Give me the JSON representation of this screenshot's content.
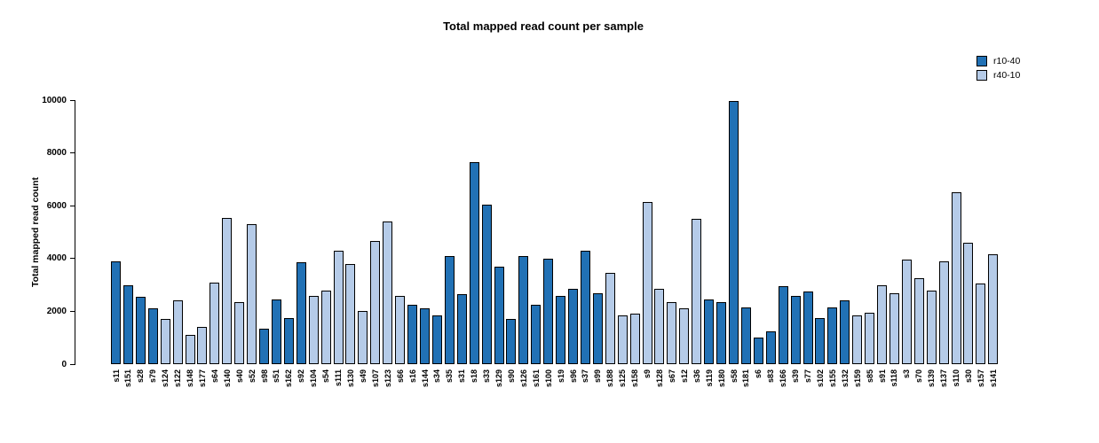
{
  "chart_data": {
    "type": "bar",
    "title": "Total mapped read count per sample",
    "xlabel": "",
    "ylabel": "Total mapped read count",
    "ylim": [
      0,
      10000
    ],
    "yticks": [
      0,
      2000,
      4000,
      6000,
      8000,
      10000
    ],
    "grid": false,
    "legend_position": "top-right",
    "series": [
      {
        "name": "r10-40",
        "color": "#2171b5"
      },
      {
        "name": "r40-10",
        "color": "#b5cbe8"
      }
    ],
    "bars": [
      {
        "sample": "s11",
        "value": 3900,
        "series": "r10-40"
      },
      {
        "sample": "s151",
        "value": 3000,
        "series": "r10-40"
      },
      {
        "sample": "s28",
        "value": 2550,
        "series": "r10-40"
      },
      {
        "sample": "s79",
        "value": 2100,
        "series": "r10-40"
      },
      {
        "sample": "s124",
        "value": 1700,
        "series": "r40-10"
      },
      {
        "sample": "s122",
        "value": 2400,
        "series": "r40-10"
      },
      {
        "sample": "s148",
        "value": 1100,
        "series": "r40-10"
      },
      {
        "sample": "s177",
        "value": 1400,
        "series": "r40-10"
      },
      {
        "sample": "s64",
        "value": 3100,
        "series": "r40-10"
      },
      {
        "sample": "s140",
        "value": 5550,
        "series": "r40-10"
      },
      {
        "sample": "s40",
        "value": 2350,
        "series": "r40-10"
      },
      {
        "sample": "s52",
        "value": 5300,
        "series": "r40-10"
      },
      {
        "sample": "s98",
        "value": 1350,
        "series": "r10-40"
      },
      {
        "sample": "s51",
        "value": 2450,
        "series": "r10-40"
      },
      {
        "sample": "s162",
        "value": 1750,
        "series": "r10-40"
      },
      {
        "sample": "s92",
        "value": 3850,
        "series": "r10-40"
      },
      {
        "sample": "s104",
        "value": 2600,
        "series": "r40-10"
      },
      {
        "sample": "s54",
        "value": 2800,
        "series": "r40-10"
      },
      {
        "sample": "s111",
        "value": 4300,
        "series": "r40-10"
      },
      {
        "sample": "s130",
        "value": 3800,
        "series": "r40-10"
      },
      {
        "sample": "s49",
        "value": 2000,
        "series": "r40-10"
      },
      {
        "sample": "s107",
        "value": 4650,
        "series": "r40-10"
      },
      {
        "sample": "s123",
        "value": 5400,
        "series": "r40-10"
      },
      {
        "sample": "s66",
        "value": 2600,
        "series": "r40-10"
      },
      {
        "sample": "s16",
        "value": 2250,
        "series": "r10-40"
      },
      {
        "sample": "s144",
        "value": 2100,
        "series": "r10-40"
      },
      {
        "sample": "s34",
        "value": 1850,
        "series": "r10-40"
      },
      {
        "sample": "s35",
        "value": 4100,
        "series": "r10-40"
      },
      {
        "sample": "s31",
        "value": 2650,
        "series": "r10-40"
      },
      {
        "sample": "s18",
        "value": 7650,
        "series": "r10-40"
      },
      {
        "sample": "s33",
        "value": 6050,
        "series": "r10-40"
      },
      {
        "sample": "s129",
        "value": 3700,
        "series": "r10-40"
      },
      {
        "sample": "s90",
        "value": 1700,
        "series": "r10-40"
      },
      {
        "sample": "s126",
        "value": 4100,
        "series": "r10-40"
      },
      {
        "sample": "s161",
        "value": 2250,
        "series": "r10-40"
      },
      {
        "sample": "s100",
        "value": 4000,
        "series": "r10-40"
      },
      {
        "sample": "s19",
        "value": 2600,
        "series": "r10-40"
      },
      {
        "sample": "s96",
        "value": 2850,
        "series": "r10-40"
      },
      {
        "sample": "s37",
        "value": 4300,
        "series": "r10-40"
      },
      {
        "sample": "s99",
        "value": 2700,
        "series": "r10-40"
      },
      {
        "sample": "s188",
        "value": 3450,
        "series": "r40-10"
      },
      {
        "sample": "s125",
        "value": 1850,
        "series": "r40-10"
      },
      {
        "sample": "s158",
        "value": 1900,
        "series": "r40-10"
      },
      {
        "sample": "s9",
        "value": 6150,
        "series": "r40-10"
      },
      {
        "sample": "s128",
        "value": 2850,
        "series": "r40-10"
      },
      {
        "sample": "s67",
        "value": 2350,
        "series": "r40-10"
      },
      {
        "sample": "s12",
        "value": 2100,
        "series": "r40-10"
      },
      {
        "sample": "s36",
        "value": 5500,
        "series": "r40-10"
      },
      {
        "sample": "s119",
        "value": 2450,
        "series": "r10-40"
      },
      {
        "sample": "s180",
        "value": 2350,
        "series": "r10-40"
      },
      {
        "sample": "s58",
        "value": 9950,
        "series": "r10-40"
      },
      {
        "sample": "s181",
        "value": 2150,
        "series": "r10-40"
      },
      {
        "sample": "s6",
        "value": 1000,
        "series": "r10-40"
      },
      {
        "sample": "s83",
        "value": 1250,
        "series": "r10-40"
      },
      {
        "sample": "s166",
        "value": 2950,
        "series": "r10-40"
      },
      {
        "sample": "s39",
        "value": 2600,
        "series": "r10-40"
      },
      {
        "sample": "s77",
        "value": 2750,
        "series": "r10-40"
      },
      {
        "sample": "s102",
        "value": 1750,
        "series": "r10-40"
      },
      {
        "sample": "s155",
        "value": 2150,
        "series": "r10-40"
      },
      {
        "sample": "s132",
        "value": 2400,
        "series": "r10-40"
      },
      {
        "sample": "s159",
        "value": 1850,
        "series": "r40-10"
      },
      {
        "sample": "s85",
        "value": 1950,
        "series": "r40-10"
      },
      {
        "sample": "s91",
        "value": 3000,
        "series": "r40-10"
      },
      {
        "sample": "s118",
        "value": 2700,
        "series": "r40-10"
      },
      {
        "sample": "s3",
        "value": 3950,
        "series": "r40-10"
      },
      {
        "sample": "s70",
        "value": 3250,
        "series": "r40-10"
      },
      {
        "sample": "s139",
        "value": 2800,
        "series": "r40-10"
      },
      {
        "sample": "s137",
        "value": 3900,
        "series": "r40-10"
      },
      {
        "sample": "s110",
        "value": 6500,
        "series": "r40-10"
      },
      {
        "sample": "s30",
        "value": 4600,
        "series": "r40-10"
      },
      {
        "sample": "s157",
        "value": 3050,
        "series": "r40-10"
      },
      {
        "sample": "s141",
        "value": 4150,
        "series": "r40-10"
      }
    ]
  }
}
